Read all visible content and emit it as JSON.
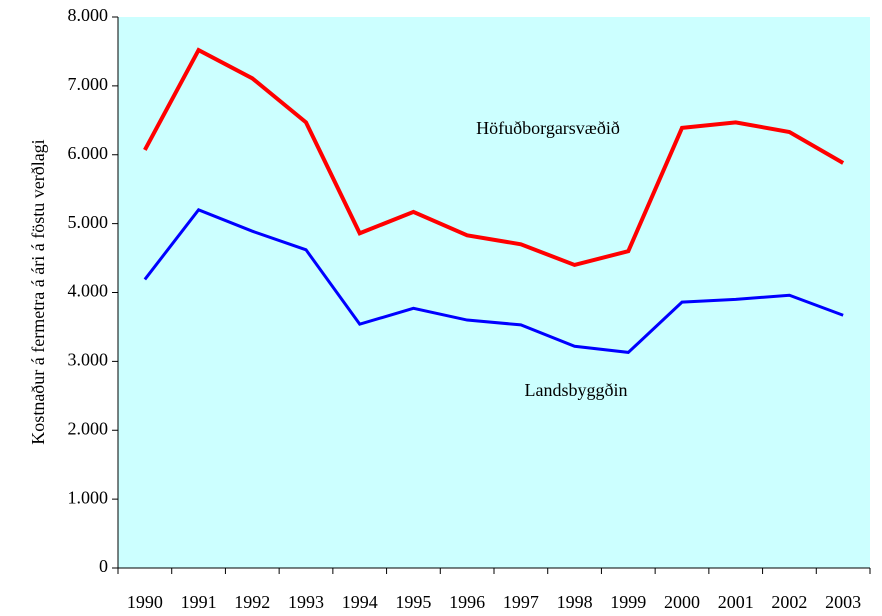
{
  "chart_data": {
    "type": "line",
    "y_label": "Kostnaður á fermetra á ári á föstu verðlagi",
    "categories": [
      "1990",
      "1991",
      "1992",
      "1993",
      "1994",
      "1995",
      "1996",
      "1997",
      "1998",
      "1999",
      "2000",
      "2001",
      "2002",
      "2003"
    ],
    "series": [
      {
        "name": "Höfuðborgarsvæðið",
        "color": "#ff0000",
        "values": [
          6070,
          7520,
          7110,
          6470,
          4860,
          5170,
          4830,
          4700,
          4400,
          4600,
          6390,
          6470,
          6330,
          5880
        ]
      },
      {
        "name": "Landsbyggðin",
        "color": "#0000ff",
        "values": [
          4190,
          5200,
          4890,
          4620,
          3540,
          3770,
          3600,
          3530,
          3220,
          3130,
          3860,
          3900,
          3960,
          3670
        ]
      }
    ],
    "ylim": [
      0,
      8000
    ],
    "yticks": [
      0,
      {
        "value": 1000,
        "label": "1.000"
      },
      {
        "value": 2000,
        "label": "2.000"
      },
      {
        "value": 3000,
        "label": "3.000"
      },
      {
        "value": 4000,
        "label": "4.000"
      },
      {
        "value": 5000,
        "label": "5.000"
      },
      {
        "value": 6000,
        "label": "6.000"
      },
      {
        "value": 7000,
        "label": "7.000"
      },
      {
        "value": 8000,
        "label": "8.000"
      }
    ],
    "background": "#ccffff"
  }
}
